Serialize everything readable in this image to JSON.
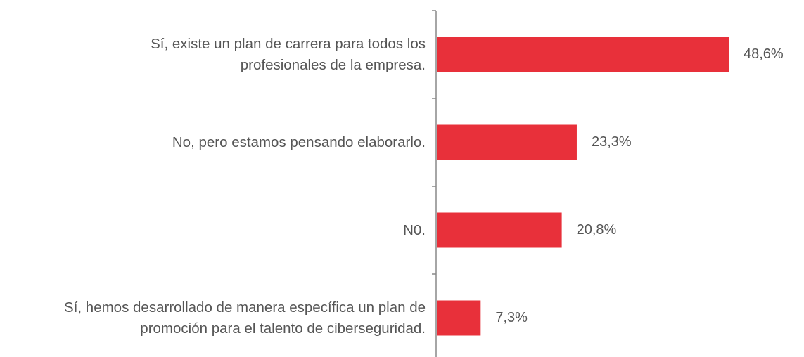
{
  "chart_data": {
    "type": "bar",
    "orientation": "horizontal",
    "categories": [
      "Sí, existe un plan de carrera para todos los profesionales de la empresa.",
      "No, pero estamos pensando elaborarlo.",
      "N0.",
      "Sí, hemos desarrollado de manera específica un plan de promoción para el talento de ciberseguridad."
    ],
    "values": [
      48.6,
      23.3,
      20.8,
      7.3
    ],
    "value_labels": [
      "48,6%",
      "23,3%",
      "20,8%",
      "7,3%"
    ],
    "color": "#e8303a"
  }
}
